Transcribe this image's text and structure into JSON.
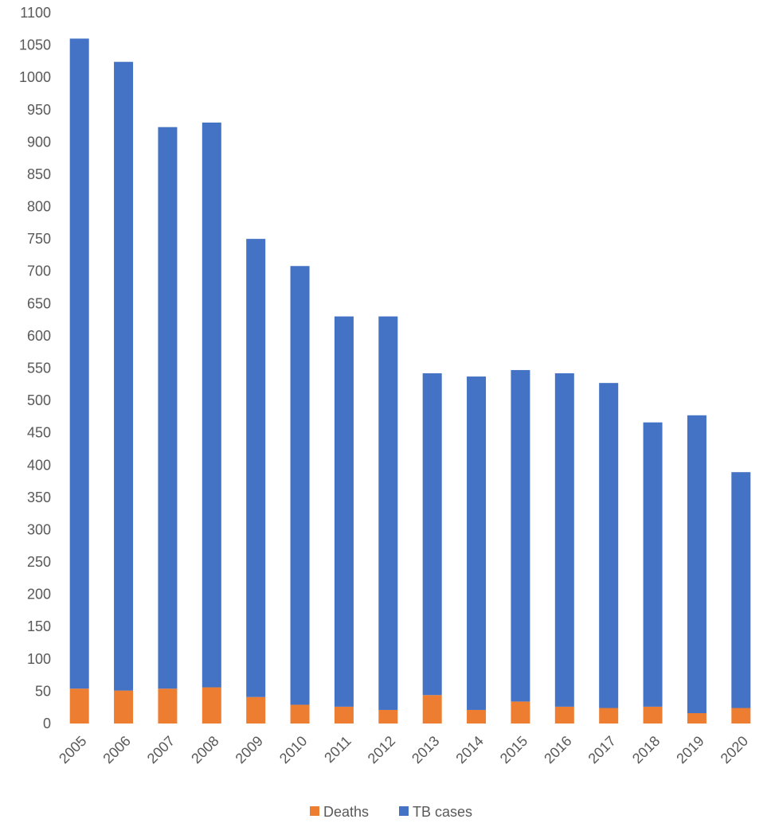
{
  "chart_data": {
    "type": "bar",
    "stacked": true,
    "categories": [
      "2005",
      "2006",
      "2007",
      "2008",
      "2009",
      "2010",
      "2011",
      "2012",
      "2013",
      "2014",
      "2015",
      "2016",
      "2017",
      "2018",
      "2019",
      "2020"
    ],
    "series": [
      {
        "name": "Deaths",
        "color": "#ED7D31",
        "values": [
          54,
          51,
          54,
          56,
          41,
          29,
          26,
          21,
          44,
          21,
          34,
          26,
          24,
          26,
          16,
          24
        ]
      },
      {
        "name": "TB cases",
        "color": "#4472C4",
        "values": [
          1006,
          973,
          869,
          874,
          709,
          679,
          604,
          609,
          498,
          516,
          513,
          516,
          503,
          440,
          461,
          365
        ]
      }
    ],
    "ylim": [
      0,
      1100
    ],
    "yticks": [
      "0",
      "50",
      "100",
      "150",
      "200",
      "250",
      "300",
      "350",
      "400",
      "450",
      "500",
      "550",
      "600",
      "650",
      "700",
      "750",
      "800",
      "850",
      "900",
      "950",
      "1000",
      "1050",
      "1100"
    ],
    "grid": false,
    "legend_position": "bottom",
    "title": "",
    "xlabel": "",
    "ylabel": ""
  }
}
